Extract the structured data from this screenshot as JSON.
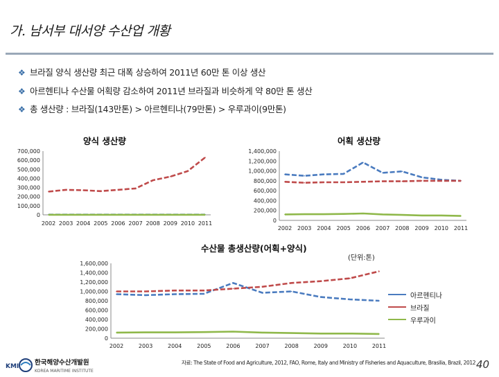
{
  "slide": {
    "title": "가. 남서부 대서양 수산업 개황",
    "bullets": [
      "브라질 양식 생산량 최근 대폭 상승하여 2011년 60만 톤 이상 생산",
      "아르헨티나 수산물 어획량 감소하여 2011년 브라질과 비슷하게 약 80만 톤 생산",
      "총 생산량 : 브라질(143만톤) > 아르헨티나(79만톤) > 우루과이(9만톤)"
    ],
    "unit_label": "(단위:톤)",
    "source": "자료: The State of Food and Agriculture, 2012, FAO, Rome, Italy and Ministry of Fisheries and Aquaculture, Brasilia, Brazil, 2012",
    "page_number": "40",
    "logo": {
      "name_ko": "한국해양수산개발원",
      "name_en": "KOREA MARITIME INSTITUTE",
      "abbr": "KMI"
    },
    "colors": {
      "argentina": "#4a7bbf",
      "brazil": "#bf4a4a",
      "uruguay": "#8fb84a"
    }
  },
  "chart_data": [
    {
      "type": "line",
      "title": "양식 생산량",
      "x": [
        "2002",
        "2003",
        "2004",
        "2005",
        "2006",
        "2007",
        "2008",
        "2009",
        "2010",
        "2011"
      ],
      "ylim": [
        0,
        700000
      ],
      "yticks": [
        "0",
        "100,000",
        "200,000",
        "300,000",
        "400,000",
        "500,000",
        "600,000",
        "700,000"
      ],
      "series": [
        {
          "name": "브라질",
          "color": "#bf4a4a",
          "values": [
            255000,
            275000,
            270000,
            260000,
            275000,
            290000,
            380000,
            420000,
            480000,
            630000
          ]
        },
        {
          "name": "아르헨티나",
          "color": "#4a7bbf",
          "values": [
            2000,
            2000,
            2000,
            2000,
            2000,
            2000,
            2000,
            2000,
            2000,
            2000
          ]
        },
        {
          "name": "우루과이",
          "color": "#8fb84a",
          "values": [
            1000,
            1000,
            1000,
            1000,
            1000,
            1000,
            1000,
            1000,
            1000,
            1000
          ]
        }
      ]
    },
    {
      "type": "line",
      "title": "어획 생산량",
      "x": [
        "2002",
        "2003",
        "2004",
        "2005",
        "2006",
        "2007",
        "2008",
        "2009",
        "2010",
        "2011"
      ],
      "ylim": [
        0,
        1400000
      ],
      "yticks": [
        "0",
        "200,000",
        "400,000",
        "600,000",
        "800,000",
        "1,000,000",
        "1,200,000",
        "1,400,000"
      ],
      "series": [
        {
          "name": "아르헨티나",
          "color": "#4a7bbf",
          "values": [
            930000,
            900000,
            930000,
            940000,
            1170000,
            960000,
            990000,
            870000,
            820000,
            800000
          ]
        },
        {
          "name": "브라질",
          "color": "#bf4a4a",
          "values": [
            780000,
            760000,
            770000,
            770000,
            780000,
            790000,
            790000,
            800000,
            800000,
            800000
          ]
        },
        {
          "name": "우루과이",
          "color": "#8fb84a",
          "values": [
            120000,
            125000,
            125000,
            130000,
            140000,
            120000,
            110000,
            100000,
            100000,
            90000
          ]
        }
      ]
    },
    {
      "type": "line",
      "title": "수산물 총생산량(어획+양식)",
      "x": [
        "2002",
        "2003",
        "2004",
        "2005",
        "2006",
        "2007",
        "2008",
        "2009",
        "2010",
        "2011"
      ],
      "ylim": [
        0,
        1600000
      ],
      "yticks": [
        "0",
        "200,000",
        "400,000",
        "600,000",
        "800,000",
        "1,000,000",
        "1,200,000",
        "1,400,000",
        "1,600,000"
      ],
      "series": [
        {
          "name": "아르헨티나",
          "color": "#4a7bbf",
          "values": [
            940000,
            920000,
            940000,
            950000,
            1180000,
            970000,
            1000000,
            880000,
            830000,
            800000
          ]
        },
        {
          "name": "브라질",
          "color": "#bf4a4a",
          "values": [
            1000000,
            1000000,
            1020000,
            1020000,
            1060000,
            1100000,
            1180000,
            1220000,
            1280000,
            1430000
          ]
        },
        {
          "name": "우루과이",
          "color": "#8fb84a",
          "values": [
            120000,
            125000,
            125000,
            130000,
            140000,
            120000,
            110000,
            100000,
            100000,
            90000
          ]
        }
      ]
    }
  ]
}
